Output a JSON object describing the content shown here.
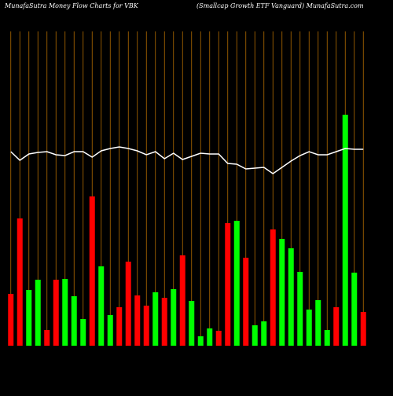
{
  "chart_data": {
    "type": "bar",
    "title": "MunafaSutra  Money Flow  Charts for VBK",
    "subtitle": "(Smallcap Growth ETF Vanguard) MunafaSutra.com",
    "background": "#000000",
    "gridline_color": "#b36b00",
    "ylim": [
      0,
      300
    ],
    "y2lim": [
      0,
      300
    ],
    "series": [
      {
        "type": "bar",
        "colors": [
          "#ff0000",
          "#ff0000",
          "#00ff00",
          "#00ff00",
          "#ff0000",
          "#ff0000",
          "#00ff00",
          "#00ff00",
          "#00ff00",
          "#ff0000",
          "#00ff00",
          "#00ff00",
          "#ff0000",
          "#ff0000",
          "#ff0000",
          "#ff0000",
          "#00ff00",
          "#ff0000",
          "#00ff00",
          "#ff0000",
          "#00ff00",
          "#00ff00",
          "#00ff00",
          "#ff0000",
          "#ff0000",
          "#00ff00",
          "#ff0000",
          "#00ff00",
          "#00ff00",
          "#ff0000",
          "#00ff00",
          "#00ff00",
          "#00ff00",
          "#00ff00",
          "#00ff00",
          "#00ff00",
          "#ff0000",
          "#00ff00",
          "#00ff00",
          "#ff0000"
        ],
        "values": [
          66,
          162,
          71,
          84,
          20,
          84,
          85,
          63,
          34,
          190,
          101,
          39,
          49,
          107,
          64,
          51,
          68,
          61,
          72,
          115,
          57,
          12,
          22,
          19,
          156,
          159,
          112,
          26,
          31,
          148,
          136,
          124,
          94,
          46,
          58,
          20,
          49,
          294,
          93,
          43
        ]
      },
      {
        "type": "line",
        "axis": "y2",
        "color": "#ffffff",
        "values": [
          247,
          236,
          244,
          246,
          247,
          243,
          242,
          247,
          247,
          240,
          248,
          251,
          253,
          251,
          248,
          243,
          247,
          238,
          245,
          237,
          241,
          245,
          244,
          244,
          232,
          231,
          225,
          226,
          227,
          219,
          227,
          235,
          242,
          247,
          243,
          243,
          247,
          251,
          250,
          250
        ]
      }
    ]
  }
}
